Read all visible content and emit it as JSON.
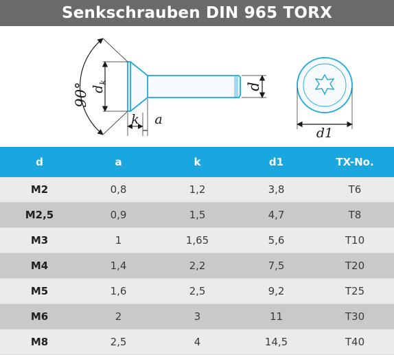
{
  "title": "Senkschrauben DIN 965 TORX",
  "drawing": {
    "angle_label": "90°",
    "dk_label": "d",
    "dk_sub": "k",
    "k_label": "k",
    "a_label": "a",
    "d_label": "d",
    "d1_label": "d1"
  },
  "table": {
    "headers": [
      "d",
      "a",
      "k",
      "d1",
      "TX-No."
    ],
    "rows": [
      [
        "M2",
        "0,8",
        "1,2",
        "3,8",
        "T6"
      ],
      [
        "M2,5",
        "0,9",
        "1,5",
        "4,7",
        "T8"
      ],
      [
        "M3",
        "1",
        "1,65",
        "5,6",
        "T10"
      ],
      [
        "M4",
        "1,4",
        "2,2",
        "7,5",
        "T20"
      ],
      [
        "M5",
        "1,6",
        "2,5",
        "9,2",
        "T25"
      ],
      [
        "M6",
        "2",
        "3",
        "11",
        "T30"
      ],
      [
        "M8",
        "2,5",
        "4",
        "14,5",
        "T40"
      ]
    ]
  },
  "colors": {
    "title_bg": "#6a6a6a",
    "header_bg": "#1aa7e0",
    "row_light": "#ebebeb",
    "row_dark": "#c9c9c9",
    "screw_outline": "#1aa7e0"
  }
}
